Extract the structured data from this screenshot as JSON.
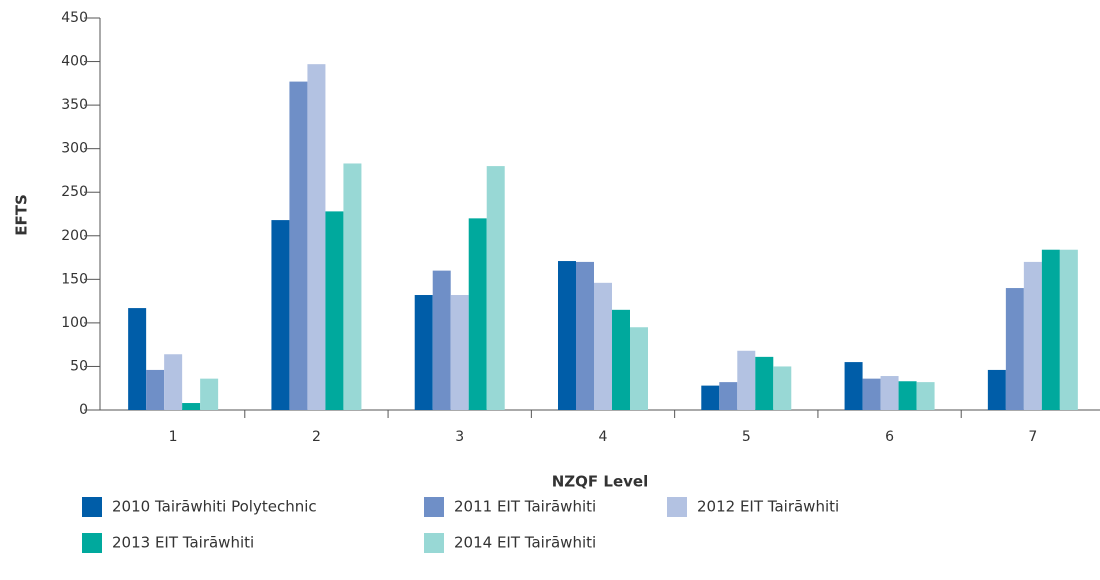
{
  "chart_data": {
    "type": "bar",
    "xlabel": "NZQF Level",
    "ylabel": "EFTS",
    "categories": [
      "1",
      "2",
      "3",
      "4",
      "5",
      "6",
      "7"
    ],
    "series": [
      {
        "name": "2010 Tairāwhiti Polytechnic",
        "color": "#005da8",
        "values": [
          117,
          218,
          132,
          171,
          28,
          55,
          46
        ]
      },
      {
        "name": "2011 EIT Tairāwhiti",
        "color": "#6f8fc7",
        "values": [
          46,
          377,
          160,
          170,
          32,
          36,
          140
        ]
      },
      {
        "name": "2012 EIT Tairāwhiti",
        "color": "#b3c2e2",
        "values": [
          64,
          397,
          132,
          146,
          68,
          39,
          170
        ]
      },
      {
        "name": "2013 EIT Tairāwhiti",
        "color": "#00a99d",
        "values": [
          8,
          228,
          220,
          115,
          61,
          33,
          184
        ]
      },
      {
        "name": "2014 EIT Tairāwhiti",
        "color": "#98d8d5",
        "values": [
          36,
          283,
          280,
          95,
          50,
          32,
          184
        ]
      }
    ],
    "ylim": [
      0,
      450
    ],
    "yticks": [
      0,
      50,
      100,
      150,
      200,
      250,
      300,
      350,
      400,
      450
    ],
    "grid": false,
    "legend": "bottom"
  }
}
